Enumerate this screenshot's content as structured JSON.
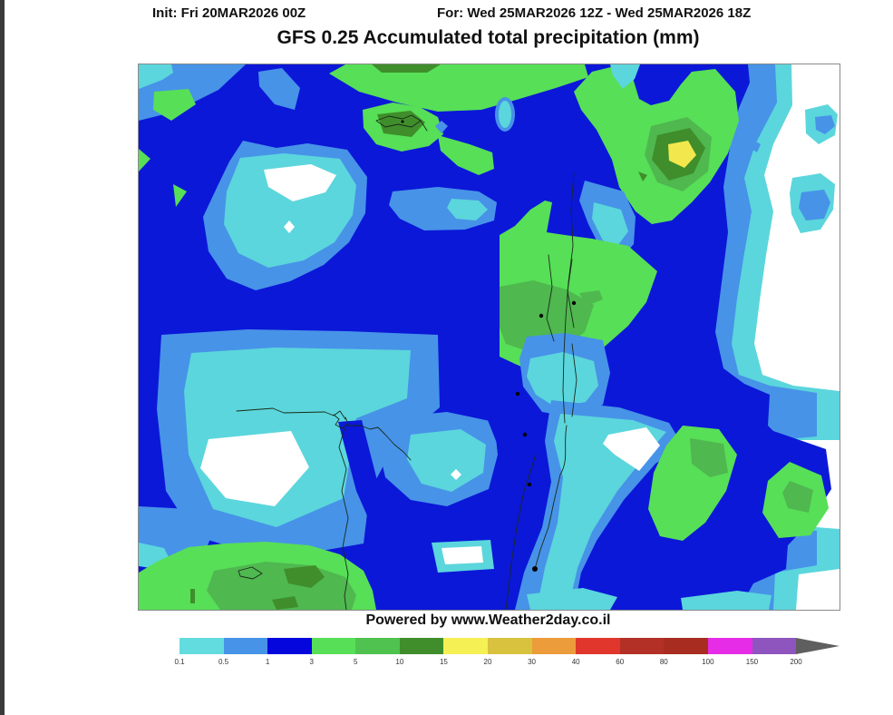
{
  "header": {
    "init": "Init: Fri 20MAR2026 00Z",
    "valid": "For: Wed 25MAR2026 12Z - Wed 25MAR2026 18Z",
    "title": "GFS 0.25 Accumulated total precipitation (mm)"
  },
  "attribution": "Powered by www.Weather2day.co.il",
  "map": {
    "model": "GFS 0.25",
    "variable": "Accumulated total precipitation",
    "units": "mm",
    "region": "Eastern Mediterranean / Middle East"
  },
  "colorbar": {
    "units": "mm",
    "segments": [
      {
        "from": 0.1,
        "to": 0.5,
        "color": "#63DCDF"
      },
      {
        "from": 0.5,
        "to": 1,
        "color": "#4793E8"
      },
      {
        "from": 1,
        "to": 3,
        "color": "#0505DD"
      },
      {
        "from": 3,
        "to": 5,
        "color": "#57E057"
      },
      {
        "from": 5,
        "to": 10,
        "color": "#4FC24F"
      },
      {
        "from": 10,
        "to": 15,
        "color": "#3F8E2B"
      },
      {
        "from": 15,
        "to": 20,
        "color": "#F5F054"
      },
      {
        "from": 20,
        "to": 30,
        "color": "#D8C23E"
      },
      {
        "from": 30,
        "to": 40,
        "color": "#EC9C3B"
      },
      {
        "from": 40,
        "to": 60,
        "color": "#E0362B"
      },
      {
        "from": 60,
        "to": 80,
        "color": "#B23026"
      },
      {
        "from": 80,
        "to": 100,
        "color": "#A82C20"
      },
      {
        "from": 100,
        "to": 150,
        "color": "#E72CE7"
      },
      {
        "from": 150,
        "to": 200,
        "color": "#8E55BE"
      }
    ],
    "labels": [
      "0.1",
      "0.5",
      "1",
      "3",
      "5",
      "10",
      "15",
      "20",
      "30",
      "40",
      "60",
      "80",
      "100",
      "150",
      "200"
    ],
    "arrow_color": "#5F5F5F",
    "arrow_meaning": ">200"
  },
  "map_colors": {
    "none": "#FFFFFF",
    "cyan_0_1": "#5BD6DC",
    "blue_0_5": "#4793E8",
    "dark_blue_1": "#0B18D8",
    "light_green_3": "#57DF57",
    "medium_green_5": "#4FB84F",
    "dark_green_10": "#3F8E2B",
    "yellow_15": "#F2E84D"
  }
}
